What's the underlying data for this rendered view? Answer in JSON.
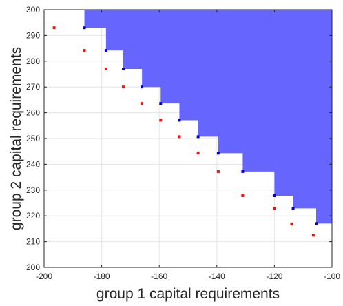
{
  "chart_data": {
    "type": "scatter",
    "title": "",
    "xlabel": "group 1 capital requirements",
    "ylabel": "group 2 capital requirements",
    "xlim": [
      -200,
      -100
    ],
    "ylim": [
      200,
      300
    ],
    "xticks": [
      -200,
      -180,
      -160,
      -140,
      -120,
      -100
    ],
    "yticks": [
      200,
      210,
      220,
      230,
      240,
      250,
      260,
      270,
      280,
      290,
      300
    ],
    "xtick_labels": [
      "-200",
      "-180",
      "-160",
      "-140",
      "-120",
      "-100"
    ],
    "ytick_labels": [
      "200",
      "210",
      "220",
      "230",
      "240",
      "250",
      "260",
      "270",
      "280",
      "290",
      "300"
    ],
    "grid": true,
    "region_color": "#6666ff",
    "series_colors": [
      "#0000cc",
      "#ee1111"
    ],
    "region_boundary": [
      [
        -186,
        300
      ],
      [
        -186,
        293
      ],
      [
        -178.5,
        293
      ],
      [
        -178.5,
        284.2
      ],
      [
        -172.5,
        284.2
      ],
      [
        -172.5,
        277
      ],
      [
        -166,
        277
      ],
      [
        -166,
        270
      ],
      [
        -159.5,
        270
      ],
      [
        -159.5,
        263.6
      ],
      [
        -153,
        263.6
      ],
      [
        -153,
        257.1
      ],
      [
        -146.5,
        257.1
      ],
      [
        -146.5,
        250.7
      ],
      [
        -139.5,
        250.7
      ],
      [
        -139.5,
        244.3
      ],
      [
        -131,
        244.3
      ],
      [
        -131,
        237.2
      ],
      [
        -120,
        237.2
      ],
      [
        -120,
        227.8
      ],
      [
        -113.5,
        227.8
      ],
      [
        -113.5,
        222.9
      ],
      [
        -105.5,
        222.9
      ],
      [
        -105.5,
        217
      ],
      [
        -100,
        217
      ]
    ],
    "series": [
      {
        "x": [
          -186,
          -178.5,
          -172.5,
          -166,
          -159.5,
          -153,
          -146.5,
          -139.5,
          -131,
          -120,
          -113.5,
          -105.5
        ],
        "y": [
          293,
          284.2,
          277,
          270,
          263.6,
          257.1,
          250.7,
          244.3,
          237.2,
          227.8,
          222.9,
          217
        ]
      },
      {
        "x": [
          -196.5,
          -186,
          -178.5,
          -172.5,
          -166,
          -159.5,
          -153,
          -146.5,
          -139.5,
          -131,
          -120,
          -114,
          -106.5
        ],
        "y": [
          293,
          284.2,
          277,
          270,
          263.6,
          257.1,
          250.7,
          244.3,
          237.2,
          227.8,
          222.9,
          216.9,
          212.5
        ]
      }
    ]
  }
}
